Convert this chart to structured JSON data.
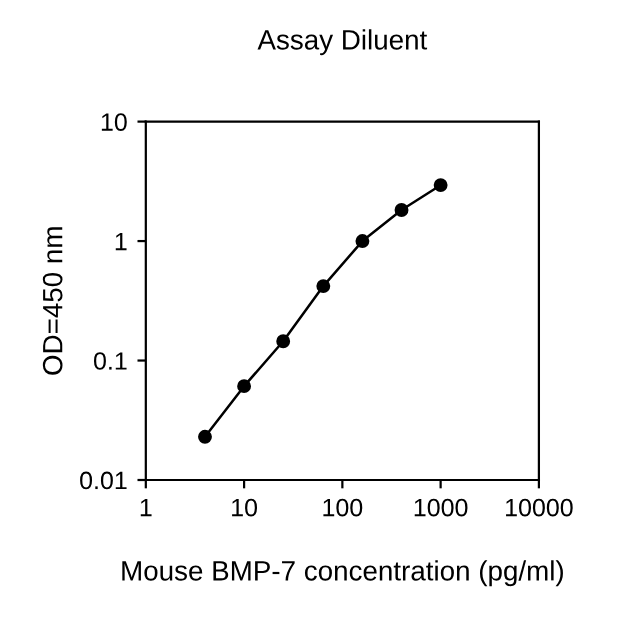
{
  "chart_data": {
    "type": "line",
    "title": "Assay Diluent",
    "xlabel": "Mouse BMP-7 concentration (pg/ml)",
    "ylabel": "OD=450 nm",
    "x": [
      4,
      10,
      25,
      64,
      160,
      400,
      1000
    ],
    "series": [
      {
        "color": "#000000",
        "values": [
          0.023,
          0.061,
          0.145,
          0.42,
          1.0,
          1.82,
          2.94
        ]
      }
    ],
    "log": "xy",
    "xlim": [
      1,
      10000
    ],
    "ylim": [
      0.01,
      10
    ],
    "xticks": [
      1,
      10,
      100,
      1000,
      10000
    ],
    "yticks": [
      0.01,
      0.1,
      1,
      10
    ],
    "marker": "circle",
    "line_style": "solid",
    "grid": false,
    "legend": false
  }
}
